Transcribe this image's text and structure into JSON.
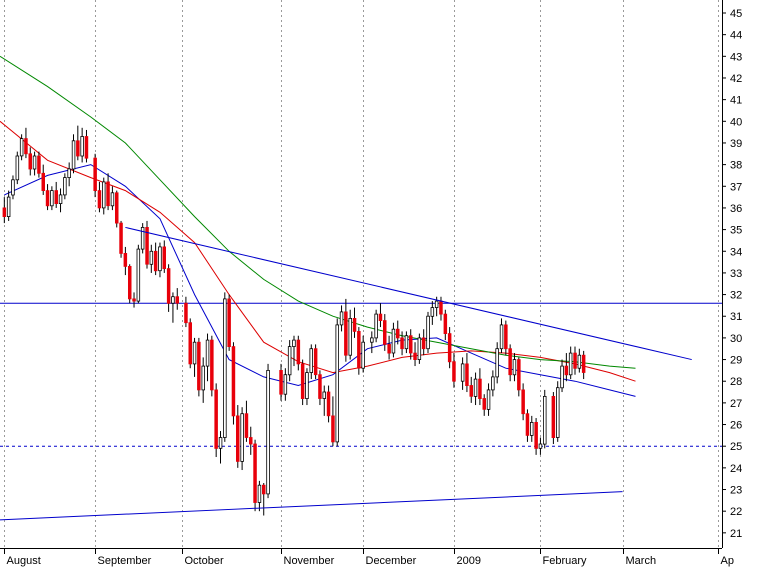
{
  "chart_data": {
    "type": "candlestick",
    "title": "",
    "xlabel": "",
    "ylabel": "",
    "ylim": [
      20.3,
      45.6
    ],
    "y_ticks": [
      21,
      22,
      23,
      24,
      25,
      26,
      27,
      28,
      29,
      30,
      31,
      32,
      33,
      34,
      35,
      36,
      37,
      38,
      39,
      40,
      41,
      42,
      43,
      44,
      45
    ],
    "y_axis_side": "right",
    "grid": "vertical dotted at month boundaries",
    "x_ticks": [
      {
        "label": "August",
        "t": 0
      },
      {
        "label": "September",
        "t": 21
      },
      {
        "label": "October",
        "t": 41
      },
      {
        "label": "November",
        "t": 64
      },
      {
        "label": "December",
        "t": 83
      },
      {
        "label": "2009",
        "t": 104
      },
      {
        "label": "February",
        "t": 124
      },
      {
        "label": "March",
        "t": 143
      },
      {
        "label": "Ap",
        "t": 165
      }
    ],
    "candles": [
      [
        36.0,
        36.5,
        35.3,
        35.6
      ],
      [
        35.6,
        36.8,
        35.4,
        36.5
      ],
      [
        36.6,
        37.5,
        36.4,
        37.3
      ],
      [
        37.3,
        38.6,
        37.1,
        38.4
      ],
      [
        38.4,
        39.4,
        38.2,
        39.2
      ],
      [
        39.2,
        39.7,
        38.3,
        38.5
      ],
      [
        38.5,
        38.8,
        37.5,
        37.8
      ],
      [
        37.8,
        38.6,
        37.5,
        38.4
      ],
      [
        38.4,
        38.6,
        37.4,
        37.6
      ],
      [
        37.6,
        38.0,
        36.6,
        36.8
      ],
      [
        36.8,
        37.1,
        35.9,
        36.1
      ],
      [
        36.1,
        37.0,
        35.9,
        36.8
      ],
      [
        36.8,
        37.2,
        36.0,
        36.2
      ],
      [
        36.2,
        36.9,
        35.8,
        36.6
      ],
      [
        36.6,
        37.6,
        36.4,
        37.4
      ],
      [
        37.4,
        38.1,
        37.0,
        37.8
      ],
      [
        37.8,
        39.4,
        37.6,
        39.1
      ],
      [
        39.1,
        39.8,
        38.2,
        38.4
      ],
      [
        38.4,
        39.7,
        38.1,
        39.3
      ],
      [
        39.3,
        39.6,
        38.1,
        38.3
      ],
      [
        38.3,
        38.5,
        36.5,
        36.8
      ],
      [
        36.8,
        37.2,
        35.8,
        36.0
      ],
      [
        36.0,
        37.4,
        35.7,
        37.2
      ],
      [
        37.2,
        37.6,
        35.9,
        36.1
      ],
      [
        36.1,
        37.0,
        35.9,
        36.7
      ],
      [
        36.7,
        36.8,
        35.1,
        35.3
      ],
      [
        35.3,
        35.4,
        33.7,
        33.9
      ],
      [
        33.9,
        34.2,
        32.9,
        33.3
      ],
      [
        33.3,
        33.4,
        31.6,
        31.8
      ],
      [
        31.8,
        32.1,
        31.4,
        31.7
      ],
      [
        31.7,
        34.3,
        31.6,
        34.1
      ],
      [
        34.1,
        35.3,
        33.9,
        35.1
      ],
      [
        35.1,
        35.4,
        33.2,
        33.4
      ],
      [
        33.4,
        34.3,
        33.0,
        34.0
      ],
      [
        34.0,
        34.4,
        32.9,
        33.1
      ],
      [
        33.1,
        34.4,
        32.8,
        34.2
      ],
      [
        34.2,
        34.5,
        33.0,
        33.2
      ],
      [
        33.2,
        33.4,
        31.2,
        31.6
      ],
      [
        31.6,
        32.1,
        30.7,
        31.9
      ],
      [
        31.9,
        32.3,
        31.3,
        31.6
      ],
      [
        31.6,
        31.9,
        30.5,
        30.7
      ],
      [
        30.7,
        30.9,
        28.6,
        28.8
      ],
      [
        28.8,
        30.0,
        28.2,
        29.8
      ],
      [
        29.8,
        30.0,
        27.3,
        27.6
      ],
      [
        27.6,
        29.1,
        27.0,
        28.7
      ],
      [
        28.7,
        30.2,
        28.0,
        29.9
      ],
      [
        29.9,
        30.1,
        27.3,
        27.6
      ],
      [
        27.6,
        27.9,
        24.5,
        24.9
      ],
      [
        24.9,
        25.7,
        24.2,
        25.4
      ],
      [
        25.4,
        32.1,
        25.2,
        31.8
      ],
      [
        31.8,
        32.0,
        29.4,
        29.6
      ],
      [
        29.6,
        29.8,
        26.0,
        26.4
      ],
      [
        26.4,
        26.9,
        24.0,
        24.3
      ],
      [
        24.3,
        26.8,
        23.9,
        26.5
      ],
      [
        26.5,
        27.1,
        25.2,
        25.4
      ],
      [
        25.4,
        25.9,
        24.6,
        25.1
      ],
      [
        25.1,
        25.3,
        22.0,
        22.4
      ],
      [
        22.4,
        23.4,
        22.0,
        23.2
      ],
      [
        23.2,
        23.3,
        21.8,
        22.8
      ],
      [
        22.8,
        28.8,
        22.6,
        28.5
      ],
      [
        28.5,
        28.8,
        27.1,
        27.4
      ],
      [
        27.4,
        28.6,
        27.1,
        28.3
      ],
      [
        28.3,
        29.9,
        28.0,
        29.6
      ],
      [
        29.6,
        30.1,
        28.7,
        29.9
      ],
      [
        29.9,
        30.1,
        28.5,
        28.8
      ],
      [
        28.8,
        29.0,
        26.9,
        27.2
      ],
      [
        27.2,
        28.6,
        26.9,
        28.4
      ],
      [
        28.4,
        29.7,
        28.1,
        29.5
      ],
      [
        29.5,
        29.7,
        28.1,
        28.3
      ],
      [
        28.3,
        28.5,
        26.9,
        27.2
      ],
      [
        27.2,
        27.8,
        26.4,
        27.5
      ],
      [
        27.5,
        27.8,
        26.1,
        26.4
      ],
      [
        26.4,
        27.3,
        25.0,
        25.2
      ],
      [
        25.2,
        30.9,
        25.0,
        30.6
      ],
      [
        30.6,
        31.5,
        30.3,
        31.2
      ],
      [
        31.2,
        31.8,
        28.9,
        29.2
      ],
      [
        29.2,
        31.3,
        29.0,
        30.9
      ],
      [
        30.9,
        31.4,
        30.0,
        30.3
      ],
      [
        30.3,
        30.5,
        28.3,
        28.6
      ],
      [
        28.6,
        30.1,
        28.4,
        29.8
      ],
      [
        29.8,
        30.3,
        29.3,
        30.0
      ],
      [
        30.0,
        31.3,
        29.8,
        31.1
      ],
      [
        31.1,
        31.6,
        30.5,
        30.8
      ],
      [
        30.8,
        31.1,
        29.4,
        29.7
      ],
      [
        29.7,
        30.1,
        29.0,
        29.3
      ],
      [
        29.3,
        30.7,
        29.1,
        30.4
      ],
      [
        30.4,
        30.8,
        29.7,
        30.0
      ],
      [
        30.0,
        30.3,
        29.2,
        29.5
      ],
      [
        29.5,
        30.3,
        29.3,
        30.1
      ],
      [
        30.1,
        30.4,
        29.0,
        29.3
      ],
      [
        29.3,
        29.8,
        28.7,
        29.0
      ],
      [
        29.0,
        30.2,
        28.8,
        30.0
      ],
      [
        30.0,
        30.4,
        29.2,
        29.5
      ],
      [
        29.5,
        31.2,
        29.3,
        31.0
      ],
      [
        31.0,
        31.7,
        30.6,
        31.4
      ],
      [
        31.4,
        31.9,
        31.0,
        31.7
      ],
      [
        31.7,
        31.9,
        30.8,
        31.1
      ],
      [
        31.1,
        31.3,
        29.9,
        30.2
      ],
      [
        30.2,
        30.5,
        28.6,
        28.9
      ],
      [
        28.9,
        29.3,
        27.7,
        28.0
      ],
      [
        28.0,
        29.1,
        27.6,
        28.8
      ],
      [
        28.8,
        29.3,
        27.5,
        27.8
      ],
      [
        27.8,
        28.2,
        27.0,
        27.3
      ],
      [
        27.3,
        28.4,
        26.9,
        28.1
      ],
      [
        28.1,
        28.6,
        26.9,
        27.2
      ],
      [
        27.2,
        27.4,
        26.4,
        26.7
      ],
      [
        26.7,
        27.9,
        26.4,
        27.6
      ],
      [
        27.6,
        28.5,
        27.3,
        28.2
      ],
      [
        28.2,
        29.8,
        27.9,
        29.5
      ],
      [
        29.5,
        30.9,
        29.3,
        30.6
      ],
      [
        30.6,
        30.8,
        29.2,
        29.5
      ],
      [
        29.5,
        29.7,
        28.0,
        28.3
      ],
      [
        28.3,
        29.3,
        28.0,
        29.0
      ],
      [
        29.0,
        29.1,
        27.3,
        27.6
      ],
      [
        27.6,
        27.9,
        26.2,
        26.5
      ],
      [
        26.5,
        26.7,
        25.2,
        25.5
      ],
      [
        25.5,
        26.4,
        25.2,
        26.1
      ],
      [
        26.1,
        26.3,
        24.6,
        24.9
      ],
      [
        24.9,
        25.4,
        24.6,
        25.1
      ],
      [
        25.1,
        27.6,
        24.9,
        27.3
      ],
      [
        27.3,
        27.5,
        25.1,
        25.4
      ],
      [
        25.4,
        28.0,
        25.2,
        27.7
      ],
      [
        27.7,
        29.0,
        27.5,
        28.7
      ],
      [
        28.7,
        29.3,
        28.0,
        28.3
      ],
      [
        28.3,
        29.6,
        28.1,
        29.3
      ],
      [
        29.3,
        29.6,
        28.3,
        28.6
      ],
      [
        28.6,
        29.5,
        28.4,
        29.2
      ],
      [
        29.2,
        29.4,
        28.1,
        28.4
      ]
    ],
    "candle_x": [
      0,
      1,
      2,
      3,
      4,
      5,
      6,
      7,
      8,
      9,
      10,
      11,
      12,
      13,
      14,
      15,
      16,
      17,
      18,
      19,
      21,
      22,
      23,
      24,
      25,
      26,
      27,
      28,
      29,
      30,
      31,
      32,
      33,
      34,
      35,
      36,
      37,
      38,
      39,
      40,
      42,
      43,
      44,
      45,
      46,
      47,
      48,
      49,
      50,
      51,
      52,
      53,
      54,
      55,
      56,
      57,
      58,
      59,
      60,
      61,
      64,
      65,
      66,
      67,
      68,
      69,
      70,
      71,
      72,
      73,
      74,
      75,
      76,
      77,
      78,
      79,
      80,
      81,
      82,
      83,
      85,
      86,
      87,
      88,
      89,
      90,
      91,
      92,
      93,
      94,
      95,
      96,
      97,
      98,
      99,
      100,
      101,
      102,
      103,
      104,
      106,
      107,
      108,
      109,
      110,
      111,
      112,
      113,
      114,
      115,
      116,
      117,
      118,
      119,
      120,
      121,
      122,
      123,
      124,
      125,
      127,
      128,
      129,
      130,
      131,
      132,
      133,
      134,
      135,
      136,
      137,
      138,
      139,
      140,
      141,
      142
    ],
    "up_color": "#ffffff",
    "down_color": "#e8000a",
    "wick_color": "#000000",
    "moving_averages": [
      {
        "color": "#0000cc",
        "points": [
          [
            0,
            36.6
          ],
          [
            10,
            37.5
          ],
          [
            20,
            38.0
          ],
          [
            28,
            37.0
          ],
          [
            36,
            35.5
          ],
          [
            44,
            32.0
          ],
          [
            52,
            29.0
          ],
          [
            60,
            28.2
          ],
          [
            68,
            27.8
          ],
          [
            76,
            28.3
          ],
          [
            84,
            29.5
          ],
          [
            92,
            29.9
          ],
          [
            100,
            30.0
          ],
          [
            108,
            29.3
          ],
          [
            116,
            28.6
          ],
          [
            124,
            28.3
          ],
          [
            132,
            28.0
          ],
          [
            140,
            27.6
          ],
          [
            146,
            27.3
          ]
        ]
      },
      {
        "color": "#dd0000",
        "points": [
          [
            -1,
            40.0
          ],
          [
            10,
            38.2
          ],
          [
            20,
            37.4
          ],
          [
            28,
            36.8
          ],
          [
            36,
            35.8
          ],
          [
            44,
            34.4
          ],
          [
            52,
            32.0
          ],
          [
            60,
            29.8
          ],
          [
            68,
            28.9
          ],
          [
            76,
            28.4
          ],
          [
            84,
            28.7
          ],
          [
            92,
            29.1
          ],
          [
            100,
            29.3
          ],
          [
            108,
            29.4
          ],
          [
            116,
            29.3
          ],
          [
            124,
            29.1
          ],
          [
            132,
            28.8
          ],
          [
            140,
            28.4
          ],
          [
            146,
            28.0
          ]
        ]
      },
      {
        "color": "#008800",
        "points": [
          [
            -1,
            43.0
          ],
          [
            10,
            41.6
          ],
          [
            20,
            40.2
          ],
          [
            28,
            39.0
          ],
          [
            36,
            37.3
          ],
          [
            44,
            35.6
          ],
          [
            52,
            34.0
          ],
          [
            60,
            32.7
          ],
          [
            68,
            31.7
          ],
          [
            76,
            31.0
          ],
          [
            84,
            30.5
          ],
          [
            92,
            30.1
          ],
          [
            100,
            29.8
          ],
          [
            108,
            29.5
          ],
          [
            116,
            29.2
          ],
          [
            124,
            29.0
          ],
          [
            132,
            28.9
          ],
          [
            140,
            28.7
          ],
          [
            146,
            28.6
          ]
        ]
      }
    ],
    "trend_lines": [
      {
        "color": "#0000cc",
        "dash": false,
        "points": [
          [
            28,
            35.1
          ],
          [
            159,
            29.0
          ]
        ]
      },
      {
        "color": "#0000cc",
        "dash": false,
        "points": [
          [
            -1,
            21.6
          ],
          [
            143,
            22.9
          ]
        ]
      }
    ],
    "horizontal_lines": [
      {
        "color": "#0000cc",
        "dash": false,
        "value": 31.6
      },
      {
        "color": "#0000cc",
        "dash": true,
        "value": 25.0
      }
    ],
    "x_domain": [
      -1,
      166
    ]
  }
}
